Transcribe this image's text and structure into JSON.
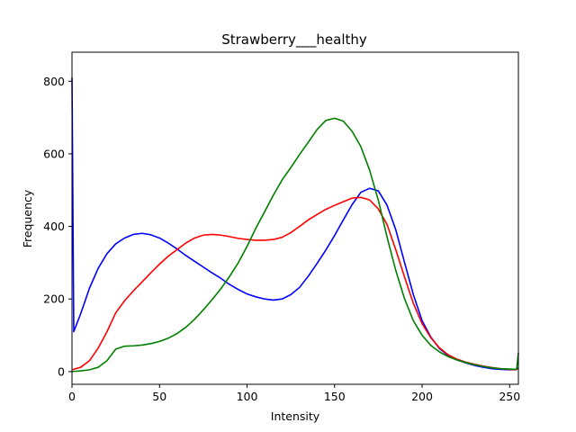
{
  "chart_data": {
    "type": "line",
    "title": "Strawberry___healthy",
    "xlabel": "Intensity",
    "ylabel": "Frequency",
    "xlim": [
      0,
      255
    ],
    "ylim": [
      -35,
      880
    ],
    "xticks": [
      0,
      50,
      100,
      150,
      200,
      250
    ],
    "yticks": [
      0,
      200,
      400,
      600,
      800
    ],
    "grid": false,
    "series": [
      {
        "color": "#0000ff",
        "x": [
          0,
          1,
          5,
          10,
          15,
          20,
          25,
          30,
          35,
          40,
          45,
          50,
          55,
          60,
          65,
          70,
          75,
          80,
          85,
          90,
          95,
          100,
          105,
          110,
          115,
          120,
          125,
          130,
          135,
          140,
          145,
          150,
          155,
          160,
          165,
          170,
          175,
          180,
          185,
          190,
          195,
          200,
          205,
          210,
          215,
          220,
          225,
          230,
          235,
          240,
          245,
          250,
          253,
          255
        ],
        "y": [
          810,
          110,
          160,
          230,
          285,
          325,
          352,
          368,
          378,
          381,
          377,
          368,
          354,
          338,
          320,
          304,
          288,
          272,
          257,
          240,
          226,
          214,
          206,
          200,
          197,
          200,
          212,
          232,
          263,
          298,
          335,
          375,
          418,
          460,
          494,
          505,
          498,
          458,
          390,
          300,
          212,
          140,
          95,
          63,
          44,
          32,
          24,
          17,
          12,
          8,
          6,
          5,
          5,
          10
        ]
      },
      {
        "color": "#ff0000",
        "x": [
          0,
          5,
          10,
          15,
          20,
          25,
          30,
          35,
          40,
          45,
          50,
          55,
          60,
          65,
          70,
          75,
          80,
          85,
          90,
          95,
          100,
          105,
          110,
          115,
          120,
          125,
          130,
          135,
          140,
          145,
          150,
          155,
          160,
          165,
          170,
          175,
          180,
          185,
          190,
          195,
          200,
          205,
          210,
          215,
          220,
          225,
          230,
          235,
          240,
          245,
          250,
          253,
          255
        ],
        "y": [
          5,
          12,
          30,
          65,
          110,
          162,
          195,
          222,
          247,
          272,
          296,
          318,
          336,
          354,
          368,
          376,
          378,
          376,
          372,
          367,
          364,
          362,
          362,
          364,
          370,
          383,
          400,
          418,
          433,
          447,
          458,
          468,
          478,
          480,
          473,
          448,
          405,
          335,
          260,
          188,
          132,
          93,
          65,
          46,
          34,
          26,
          20,
          15,
          11,
          8,
          6,
          5,
          8
        ]
      },
      {
        "color": "#008000",
        "x": [
          0,
          5,
          10,
          15,
          20,
          25,
          30,
          35,
          40,
          45,
          50,
          55,
          60,
          65,
          70,
          75,
          80,
          85,
          90,
          95,
          100,
          105,
          110,
          115,
          120,
          125,
          130,
          135,
          140,
          145,
          150,
          155,
          160,
          165,
          170,
          175,
          180,
          185,
          190,
          195,
          200,
          205,
          210,
          215,
          220,
          225,
          230,
          235,
          240,
          245,
          250,
          254,
          255
        ],
        "y": [
          0,
          2,
          5,
          12,
          30,
          62,
          70,
          71,
          73,
          77,
          83,
          92,
          105,
          122,
          144,
          170,
          198,
          228,
          262,
          300,
          345,
          395,
          440,
          486,
          528,
          562,
          598,
          632,
          667,
          692,
          698,
          690,
          662,
          620,
          555,
          472,
          370,
          278,
          200,
          140,
          100,
          72,
          54,
          41,
          32,
          25,
          19,
          14,
          10,
          8,
          7,
          6,
          52
        ]
      }
    ]
  }
}
